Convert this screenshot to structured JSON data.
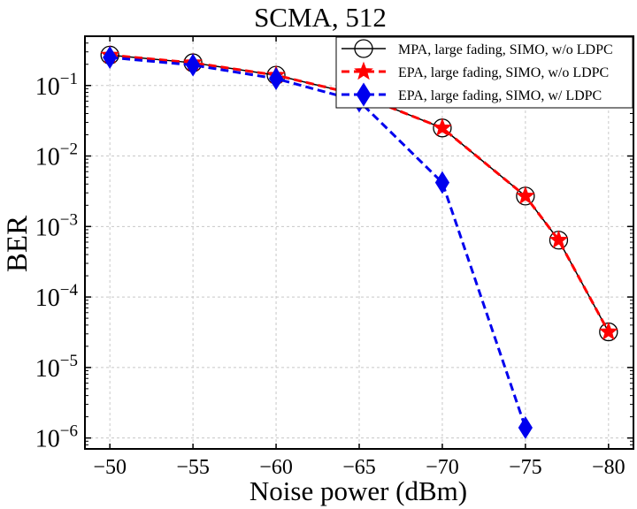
{
  "chart_data": {
    "type": "line",
    "title": "SCMA, 512",
    "xlabel": "Noise power (dBm)",
    "ylabel": "BER",
    "xlim": [
      -48.5,
      -81.5
    ],
    "ylim": [
      7e-07,
      0.5
    ],
    "xscale": "linear",
    "yscale": "log",
    "x_ticks": [
      {
        "value": -50,
        "label": "−50"
      },
      {
        "value": -55,
        "label": "−55"
      },
      {
        "value": -60,
        "label": "−60"
      },
      {
        "value": -65,
        "label": "−65"
      },
      {
        "value": -70,
        "label": "−70"
      },
      {
        "value": -75,
        "label": "−75"
      },
      {
        "value": -80,
        "label": "−80"
      }
    ],
    "y_ticks": [
      {
        "value": 0.1,
        "base": "10",
        "exp": "−1"
      },
      {
        "value": 0.01,
        "base": "10",
        "exp": "−2"
      },
      {
        "value": 0.001,
        "base": "10",
        "exp": "−3"
      },
      {
        "value": 0.0001,
        "base": "10",
        "exp": "−4"
      },
      {
        "value": 1e-05,
        "base": "10",
        "exp": "−5"
      },
      {
        "value": 1e-06,
        "base": "10",
        "exp": "−6"
      }
    ],
    "grid": true,
    "legend_position": "top-right",
    "series": [
      {
        "name": "MPA, large fading, SIMO, w/o LDPC",
        "color": "#000000",
        "line_style": "solid",
        "marker": "open-circle",
        "x": [
          -50,
          -55,
          -60,
          -65,
          -70,
          -75,
          -77,
          -80
        ],
        "y": [
          0.27,
          0.21,
          0.14,
          0.073,
          0.025,
          0.0027,
          0.00064,
          3.2e-05
        ]
      },
      {
        "name": "EPA, large fading, SIMO, w/o LDPC",
        "color": "#ff0000",
        "line_style": "dashed",
        "marker": "star",
        "x": [
          -50,
          -55,
          -60,
          -65,
          -70,
          -75,
          -77,
          -80
        ],
        "y": [
          0.27,
          0.21,
          0.14,
          0.073,
          0.025,
          0.0027,
          0.00064,
          3.2e-05
        ]
      },
      {
        "name": "EPA, large fading, SIMO, w/ LDPC",
        "color": "#0000ee",
        "line_style": "dashed",
        "marker": "diamond",
        "x": [
          -50,
          -55,
          -60,
          -65,
          -70,
          -75
        ],
        "y": [
          0.25,
          0.195,
          0.125,
          0.06,
          0.0042,
          1.4e-06
        ]
      }
    ]
  }
}
